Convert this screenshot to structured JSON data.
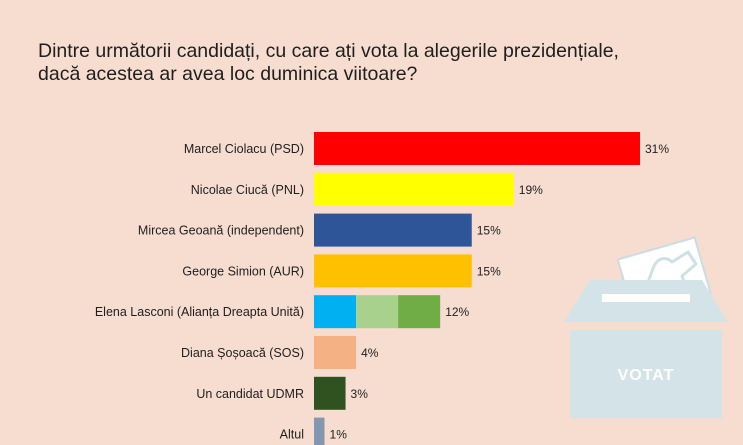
{
  "question": {
    "line1": "Dintre următorii candidați, cu care ați vota la alegerile prezidențiale,",
    "line2": "dacă acestea ar avea loc duminica viitoare?"
  },
  "ballot": {
    "label": "VOTAT"
  },
  "chart_data": {
    "type": "bar",
    "orientation": "horizontal",
    "categories": [
      "Marcel Ciolacu (PSD)",
      "Nicolae Ciucă (PNL)",
      "Mircea Geoană (independent)",
      "George Simion (AUR)",
      "Elena Lasconi (Alianța Dreapta Unită)",
      "Diana Șoșoacă (SOS)",
      "Un candidat UDMR",
      "Altul"
    ],
    "values": [
      31,
      19,
      15,
      15,
      12,
      4,
      3,
      1
    ],
    "value_labels": [
      "31%",
      "19%",
      "15%",
      "15%",
      "12%",
      "4%",
      "3%",
      "1%"
    ],
    "colors": [
      [
        "#fe0000"
      ],
      [
        "#ffff00"
      ],
      [
        "#2e5597"
      ],
      [
        "#ffc000"
      ],
      [
        "#00b0f0",
        "#a9d18e",
        "#70ad47"
      ],
      [
        "#f4b183"
      ],
      [
        "#2f5220"
      ],
      [
        "#8497b0"
      ]
    ],
    "xlim": [
      0,
      31
    ],
    "grid": false,
    "legend": "none"
  }
}
